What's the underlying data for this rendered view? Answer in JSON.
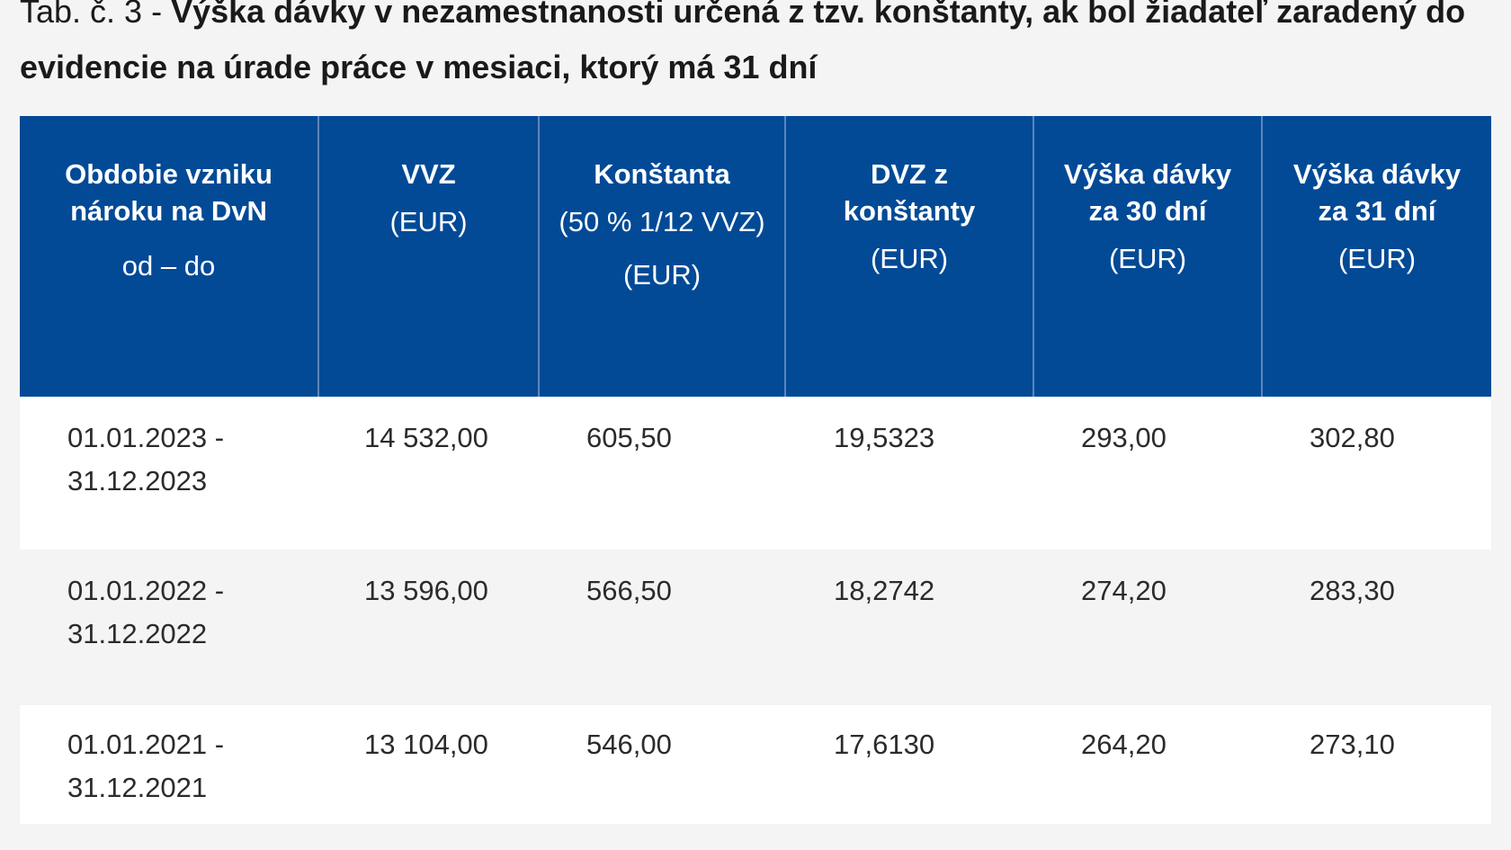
{
  "caption": {
    "prefix": "Tab. č. 3 - ",
    "title": "Výška dávky v nezamestnanosti určená z tzv. konštanty, ak bol žiadateľ zaradený do evidencie na úrade práce v mesiaci, ktorý má 31 dní"
  },
  "table": {
    "headers": [
      {
        "title": "Obdobie vzniku nároku na DvN",
        "sub1": "od – do",
        "sub2": ""
      },
      {
        "title": "VVZ",
        "sub1": "(EUR)",
        "sub2": ""
      },
      {
        "title": "Konštanta",
        "sub1": "(50 % 1/12 VVZ)",
        "sub2": "(EUR)"
      },
      {
        "title": "DVZ z konštanty",
        "sub1": "(EUR)",
        "sub2": ""
      },
      {
        "title": "Výška dávky za 30 dní",
        "sub1": "(EUR)",
        "sub2": ""
      },
      {
        "title": "Výška dávky za 31 dní",
        "sub1": "(EUR)",
        "sub2": ""
      }
    ],
    "rows": [
      {
        "period_from": "01.01.2023 -",
        "period_to": "31.12.2023",
        "vvz": "14 532,00",
        "konstanta": "605,50",
        "dvz": "19,5323",
        "davka30": "293,00",
        "davka31": "302,80"
      },
      {
        "period_from": "01.01.2022 -",
        "period_to": "31.12.2022",
        "vvz": "13 596,00",
        "konstanta": "566,50",
        "dvz": "18,2742",
        "davka30": "274,20",
        "davka31": "283,30"
      },
      {
        "period_from": "01.01.2021 -",
        "period_to": "31.12.2021",
        "vvz": "13 104,00",
        "konstanta": "546,00",
        "dvz": "17,6130",
        "davka30": "264,20",
        "davka31": "273,10"
      }
    ]
  },
  "colors": {
    "header_bg": "#024a96",
    "header_text": "#ffffff",
    "row_white": "#ffffff",
    "row_grey": "#f4f4f4"
  }
}
